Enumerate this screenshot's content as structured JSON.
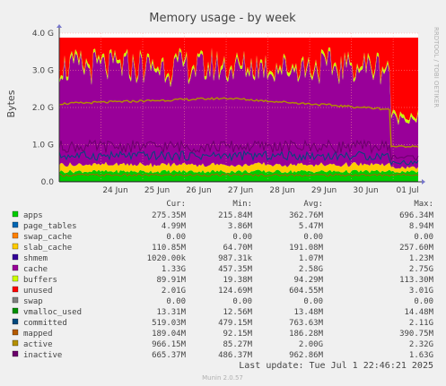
{
  "chart_data": {
    "type": "area",
    "title": "Memory usage - by week",
    "ylabel": "Bytes",
    "side_label": "RRDTOOL / TOBI OETIKER",
    "footer": "Munin 2.0.57",
    "last_update": "Last update:  Tue Jul  1 22:46:21 2025",
    "ylim": [
      0,
      4.0
    ],
    "ytick_values": [
      0,
      1,
      2,
      3,
      4
    ],
    "ytick_labels": [
      "0.0",
      "1.0 G",
      "2.0 G",
      "3.0 G",
      "4.0 G"
    ],
    "x_range_days": [
      0,
      8.6
    ],
    "x_ticks": [
      {
        "day": 1.0,
        "label": "24 Jun"
      },
      {
        "day": 2.0,
        "label": "25 Jun"
      },
      {
        "day": 3.0,
        "label": "26 Jun"
      },
      {
        "day": 4.0,
        "label": "27 Jun"
      },
      {
        "day": 5.0,
        "label": "28 Jun"
      },
      {
        "day": 6.0,
        "label": "29 Jun"
      },
      {
        "day": 7.0,
        "label": "30 Jun"
      },
      {
        "day": 8.0,
        "label": "01 Jul"
      }
    ],
    "legend_headers": [
      "Cur:",
      "Min:",
      "Avg:",
      "Max:"
    ],
    "stack_order": [
      "apps",
      "page_tables",
      "swap_cache",
      "slab_cache",
      "shmem",
      "cache",
      "buffers",
      "unused",
      "swap"
    ],
    "line_series": [
      "vmalloc_used",
      "committed",
      "mapped",
      "active",
      "inactive"
    ],
    "series": [
      {
        "name": "apps",
        "color": "#00cc00",
        "cur": "275.35M",
        "min": "215.84M",
        "avg": "362.76M",
        "max": "696.34M"
      },
      {
        "name": "page_tables",
        "color": "#0066b3",
        "cur": "4.99M",
        "min": "3.86M",
        "avg": "5.47M",
        "max": "8.94M"
      },
      {
        "name": "swap_cache",
        "color": "#ff8000",
        "cur": "0.00",
        "min": "0.00",
        "avg": "0.00",
        "max": "0.00"
      },
      {
        "name": "slab_cache",
        "color": "#ffcc00",
        "cur": "110.85M",
        "min": "64.70M",
        "avg": "191.08M",
        "max": "257.60M"
      },
      {
        "name": "shmem",
        "color": "#330099",
        "cur": "1020.00k",
        "min": "987.31k",
        "avg": "1.07M",
        "max": "1.23M"
      },
      {
        "name": "cache",
        "color": "#990099",
        "cur": "1.33G",
        "min": "457.35M",
        "avg": "2.58G",
        "max": "2.75G"
      },
      {
        "name": "buffers",
        "color": "#ccff00",
        "cur": "89.91M",
        "min": "19.38M",
        "avg": "94.29M",
        "max": "113.30M"
      },
      {
        "name": "unused",
        "color": "#ff0000",
        "cur": "2.01G",
        "min": "124.69M",
        "avg": "604.55M",
        "max": "3.01G"
      },
      {
        "name": "swap",
        "color": "#808080",
        "cur": "0.00",
        "min": "0.00",
        "avg": "0.00",
        "max": "0.00"
      },
      {
        "name": "vmalloc_used",
        "color": "#008f00",
        "cur": "13.31M",
        "min": "12.56M",
        "avg": "13.48M",
        "max": "14.48M"
      },
      {
        "name": "committed",
        "color": "#00487d",
        "cur": "519.03M",
        "min": "479.15M",
        "avg": "763.63M",
        "max": "2.11G"
      },
      {
        "name": "mapped",
        "color": "#b35a00",
        "cur": "189.04M",
        "min": "92.15M",
        "avg": "186.28M",
        "max": "390.75M"
      },
      {
        "name": "active",
        "color": "#b38f00",
        "cur": "966.15M",
        "min": "85.27M",
        "avg": "2.00G",
        "max": "2.32G"
      },
      {
        "name": "inactive",
        "color": "#6b006b",
        "cur": "665.37M",
        "min": "486.37M",
        "avg": "962.86M",
        "max": "1.63G"
      }
    ],
    "approx_levels_gb": {
      "apps": {
        "before_drop": 0.28,
        "after_drop": 0.27
      },
      "slab_cache": {
        "before_drop": 0.18,
        "after_drop": 0.11
      },
      "cache": {
        "before_drop": 2.6,
        "after_drop": 1.33
      },
      "buffers": {
        "before_drop": 0.09,
        "after_drop": 0.09
      },
      "unused": {
        "before_drop": 0.6,
        "after_drop": 2.01
      },
      "active": {
        "start": 2.1,
        "mid": 2.25,
        "late": 1.95,
        "end": 0.95
      },
      "inactive": {
        "before_drop": 0.95,
        "after_drop": 0.66
      },
      "committed": {
        "before_drop": 0.7,
        "after_drop": 0.52
      },
      "mapped": {
        "before_drop": 0.18,
        "after_drop": 0.19
      },
      "drop_at_day": 7.95
    }
  },
  "colors": {
    "background": "#f0f0f0",
    "plot_background": "#ffffff",
    "grid_major": "#ff9999",
    "grid_minor": "#d8d8d8",
    "axis": "#333333",
    "text": "#444444",
    "title": "#444444"
  }
}
